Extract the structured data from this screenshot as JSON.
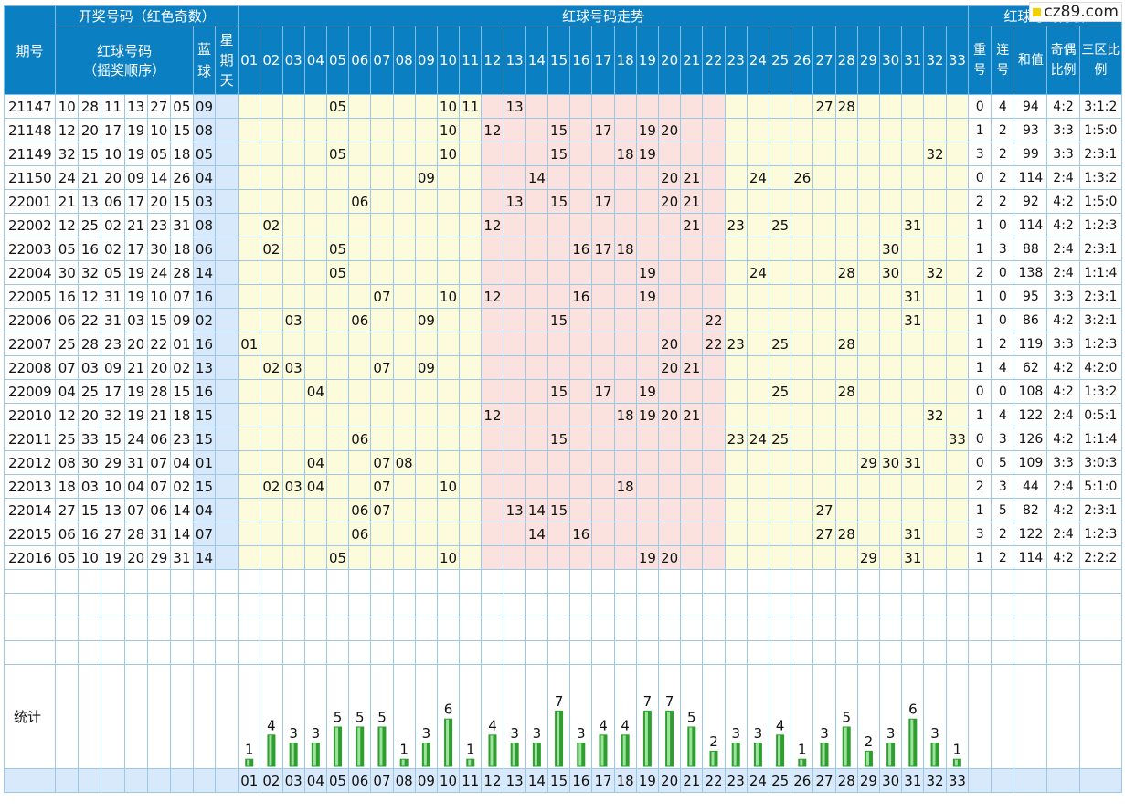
{
  "watermark": "cz89.com",
  "header": {
    "issue_label": "期号",
    "draw_label": "开奖号码（红色奇数）",
    "red_label": "红球号码",
    "red_sub": "（摇奖顺序）",
    "blue_label": "蓝球",
    "weekday_label": "星期天",
    "trend_label": "红球号码走势",
    "analysis_label": "红球号码分析",
    "analysis_cols": [
      "重号",
      "连号",
      "和值",
      "奇偶比例",
      "三区比例"
    ]
  },
  "columns": [
    "01",
    "02",
    "03",
    "04",
    "05",
    "06",
    "07",
    "08",
    "09",
    "10",
    "11",
    "12",
    "13",
    "14",
    "15",
    "16",
    "17",
    "18",
    "19",
    "20",
    "21",
    "22",
    "23",
    "24",
    "25",
    "26",
    "27",
    "28",
    "29",
    "30",
    "31",
    "32",
    "33"
  ],
  "rows": [
    {
      "issue": "21147",
      "reds": [
        "10",
        "28",
        "11",
        "13",
        "27",
        "05"
      ],
      "blue": "09",
      "repeat": "0",
      "consec": "4",
      "sum": "94",
      "oddeven": "4:2",
      "zones": "3:1:2"
    },
    {
      "issue": "21148",
      "reds": [
        "12",
        "20",
        "17",
        "19",
        "10",
        "15"
      ],
      "blue": "08",
      "repeat": "1",
      "consec": "2",
      "sum": "93",
      "oddeven": "3:3",
      "zones": "1:5:0"
    },
    {
      "issue": "21149",
      "reds": [
        "32",
        "15",
        "10",
        "19",
        "05",
        "18"
      ],
      "blue": "05",
      "repeat": "3",
      "consec": "2",
      "sum": "99",
      "oddeven": "3:3",
      "zones": "2:3:1"
    },
    {
      "issue": "21150",
      "reds": [
        "24",
        "21",
        "20",
        "09",
        "14",
        "26"
      ],
      "blue": "04",
      "repeat": "0",
      "consec": "2",
      "sum": "114",
      "oddeven": "2:4",
      "zones": "1:3:2"
    },
    {
      "issue": "22001",
      "reds": [
        "21",
        "13",
        "06",
        "17",
        "20",
        "15"
      ],
      "blue": "03",
      "repeat": "2",
      "consec": "2",
      "sum": "92",
      "oddeven": "4:2",
      "zones": "1:5:0"
    },
    {
      "issue": "22002",
      "reds": [
        "12",
        "25",
        "02",
        "21",
        "23",
        "31"
      ],
      "blue": "08",
      "repeat": "1",
      "consec": "0",
      "sum": "114",
      "oddeven": "4:2",
      "zones": "1:2:3"
    },
    {
      "issue": "22003",
      "reds": [
        "05",
        "16",
        "02",
        "17",
        "30",
        "18"
      ],
      "blue": "06",
      "repeat": "1",
      "consec": "3",
      "sum": "88",
      "oddeven": "2:4",
      "zones": "2:3:1"
    },
    {
      "issue": "22004",
      "reds": [
        "30",
        "32",
        "05",
        "19",
        "24",
        "28"
      ],
      "blue": "14",
      "repeat": "2",
      "consec": "0",
      "sum": "138",
      "oddeven": "2:4",
      "zones": "1:1:4"
    },
    {
      "issue": "22005",
      "reds": [
        "16",
        "12",
        "31",
        "19",
        "10",
        "07"
      ],
      "blue": "16",
      "repeat": "1",
      "consec": "0",
      "sum": "95",
      "oddeven": "3:3",
      "zones": "2:3:1"
    },
    {
      "issue": "22006",
      "reds": [
        "06",
        "22",
        "31",
        "03",
        "15",
        "09"
      ],
      "blue": "02",
      "repeat": "1",
      "consec": "0",
      "sum": "86",
      "oddeven": "4:2",
      "zones": "3:2:1"
    },
    {
      "issue": "22007",
      "reds": [
        "25",
        "28",
        "23",
        "20",
        "22",
        "01"
      ],
      "blue": "16",
      "repeat": "1",
      "consec": "2",
      "sum": "119",
      "oddeven": "3:3",
      "zones": "1:2:3"
    },
    {
      "issue": "22008",
      "reds": [
        "07",
        "03",
        "09",
        "21",
        "20",
        "02"
      ],
      "blue": "13",
      "repeat": "1",
      "consec": "4",
      "sum": "62",
      "oddeven": "4:2",
      "zones": "4:2:0"
    },
    {
      "issue": "22009",
      "reds": [
        "04",
        "25",
        "17",
        "19",
        "28",
        "15"
      ],
      "blue": "16",
      "repeat": "0",
      "consec": "0",
      "sum": "108",
      "oddeven": "4:2",
      "zones": "1:3:2"
    },
    {
      "issue": "22010",
      "reds": [
        "12",
        "20",
        "32",
        "19",
        "21",
        "18"
      ],
      "blue": "15",
      "repeat": "1",
      "consec": "4",
      "sum": "122",
      "oddeven": "2:4",
      "zones": "0:5:1"
    },
    {
      "issue": "22011",
      "reds": [
        "25",
        "33",
        "15",
        "24",
        "06",
        "23"
      ],
      "blue": "15",
      "repeat": "0",
      "consec": "3",
      "sum": "126",
      "oddeven": "4:2",
      "zones": "1:1:4"
    },
    {
      "issue": "22012",
      "reds": [
        "08",
        "30",
        "29",
        "31",
        "07",
        "04"
      ],
      "blue": "01",
      "repeat": "0",
      "consec": "5",
      "sum": "109",
      "oddeven": "3:3",
      "zones": "3:0:3"
    },
    {
      "issue": "22013",
      "reds": [
        "18",
        "03",
        "10",
        "04",
        "07",
        "02"
      ],
      "blue": "15",
      "repeat": "2",
      "consec": "3",
      "sum": "44",
      "oddeven": "2:4",
      "zones": "5:1:0"
    },
    {
      "issue": "22014",
      "reds": [
        "27",
        "15",
        "13",
        "07",
        "06",
        "14"
      ],
      "blue": "04",
      "repeat": "1",
      "consec": "5",
      "sum": "82",
      "oddeven": "4:2",
      "zones": "2:3:1"
    },
    {
      "issue": "22015",
      "reds": [
        "06",
        "16",
        "27",
        "28",
        "31",
        "14"
      ],
      "blue": "07",
      "repeat": "3",
      "consec": "2",
      "sum": "122",
      "oddeven": "2:4",
      "zones": "1:2:3"
    },
    {
      "issue": "22016",
      "reds": [
        "05",
        "10",
        "19",
        "20",
        "29",
        "31"
      ],
      "blue": "14",
      "repeat": "1",
      "consec": "2",
      "sum": "114",
      "oddeven": "4:2",
      "zones": "2:2:2"
    }
  ],
  "stats_label": "统计",
  "chart_data": {
    "type": "bar",
    "categories": [
      "01",
      "02",
      "03",
      "04",
      "05",
      "06",
      "07",
      "08",
      "09",
      "10",
      "11",
      "12",
      "13",
      "14",
      "15",
      "16",
      "17",
      "18",
      "19",
      "20",
      "21",
      "22",
      "23",
      "24",
      "25",
      "26",
      "27",
      "28",
      "29",
      "30",
      "31",
      "32",
      "33"
    ],
    "values": [
      1,
      4,
      3,
      3,
      5,
      5,
      5,
      1,
      3,
      6,
      1,
      4,
      3,
      3,
      7,
      3,
      4,
      4,
      7,
      7,
      5,
      2,
      3,
      3,
      4,
      1,
      3,
      5,
      2,
      3,
      6,
      3,
      1
    ],
    "ylim": [
      0,
      7
    ],
    "colors": {
      "bar": "#2e9e2e",
      "bar_light": "#9fe29f"
    }
  }
}
